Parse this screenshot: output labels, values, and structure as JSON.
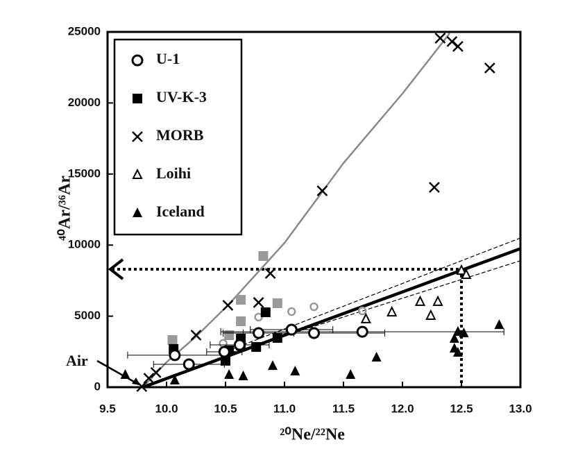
{
  "chart_data": {
    "type": "scatter",
    "xlabel": "²⁰Ne/²²Ne",
    "ylabel": "⁴⁰Ar/³⁶Ar",
    "xlim": [
      9.5,
      13.0
    ],
    "ylim": [
      0,
      25000
    ],
    "xticks": [
      9.5,
      {
        "value": 10,
        "label": "10.0"
      },
      10.5,
      {
        "value": 11,
        "label": "11.0"
      },
      11.5,
      {
        "value": 12,
        "label": "12.0"
      },
      12.5,
      {
        "value": 13,
        "label": "13.0"
      }
    ],
    "yticks": [
      0,
      5000,
      10000,
      15000,
      20000,
      25000
    ],
    "annotation": "Air",
    "annotation_target": {
      "x": 9.8,
      "y": 0
    },
    "guide": {
      "x": 12.5,
      "y": 8300
    },
    "series": [
      {
        "name": "U-1",
        "marker": "open-circle",
        "color": "#000000",
        "x": [
          10.07,
          10.19,
          10.49,
          10.62,
          10.78,
          11.06,
          11.25,
          11.66
        ],
        "y": [
          2250,
          1610,
          2490,
          2980,
          3810,
          4050,
          3810,
          3900
        ],
        "xerr": [
          0.4,
          0.3,
          0.15,
          0.25,
          0.3,
          0.35,
          0.6,
          1.2
        ]
      },
      {
        "name": "UV-K-3",
        "marker": "square",
        "color": "#000000",
        "x": [
          10.06,
          10.5,
          10.53,
          10.63,
          10.63,
          10.76,
          10.84,
          10.94
        ],
        "y": [
          2690,
          1860,
          2590,
          3420,
          2930,
          2830,
          5270,
          3470
        ]
      },
      {
        "name": "MORB",
        "marker": "cross",
        "color": "#000000",
        "x": [
          9.79,
          9.85,
          9.91,
          10.25,
          10.52,
          10.78,
          10.88,
          11.32,
          12.27,
          12.32,
          12.42,
          12.47,
          12.74
        ],
        "y": [
          50,
          630,
          1030,
          3660,
          5760,
          5960,
          8010,
          13820,
          14060,
          24560,
          24320,
          23980,
          22460
        ]
      },
      {
        "name": "Loihi",
        "marker": "open-triangle",
        "color": "#000000",
        "x": [
          12.5,
          12.54,
          11.69,
          11.91,
          12.15,
          12.24,
          12.3
        ],
        "y": [
          8200,
          7910,
          4790,
          5270,
          6010,
          5030,
          6010
        ]
      },
      {
        "name": "Iceland",
        "marker": "triangle",
        "color": "#000000",
        "x": [
          9.65,
          10.07,
          10.53,
          10.65,
          10.9,
          11.09,
          11.56,
          11.78,
          12.44,
          12.47,
          12.52,
          12.44,
          12.47,
          12.82
        ],
        "y": [
          880,
          490,
          880,
          780,
          1510,
          1120,
          880,
          2100,
          3420,
          3910,
          3810,
          2730,
          2440,
          4390
        ]
      },
      {
        "marker": "square",
        "color": "#999999",
        "x": [
          10.05,
          10.53,
          10.63,
          10.63,
          10.82,
          10.94
        ],
        "y": [
          3320,
          3660,
          6150,
          4640,
          9230,
          5910
        ]
      },
      {
        "marker": "open-circle-small",
        "color": "#999999",
        "x": [
          10.48,
          10.78,
          11.06,
          11.25,
          11.66
        ],
        "y": [
          3080,
          4930,
          5320,
          5660,
          5370
        ]
      }
    ],
    "fit_lines": [
      {
        "color": "#888888",
        "style": "solid",
        "x": [
          9.8,
          10.0,
          10.25,
          10.52,
          11.0,
          11.5,
          12.0,
          12.4
        ],
        "y": [
          0,
          1760,
          3560,
          5760,
          10150,
          15770,
          20660,
          24900
        ]
      },
      {
        "color": "#000000",
        "style": "thick",
        "x": [
          9.8,
          13.0
        ],
        "y": [
          0,
          9750
        ]
      },
      {
        "color": "#000000",
        "style": "dashed",
        "x": [
          10.5,
          13.0
        ],
        "y": [
          2500,
          10500
        ]
      },
      {
        "color": "#000000",
        "style": "dashed",
        "x": [
          10.5,
          13.0
        ],
        "y": [
          2300,
          8900
        ]
      }
    ]
  }
}
